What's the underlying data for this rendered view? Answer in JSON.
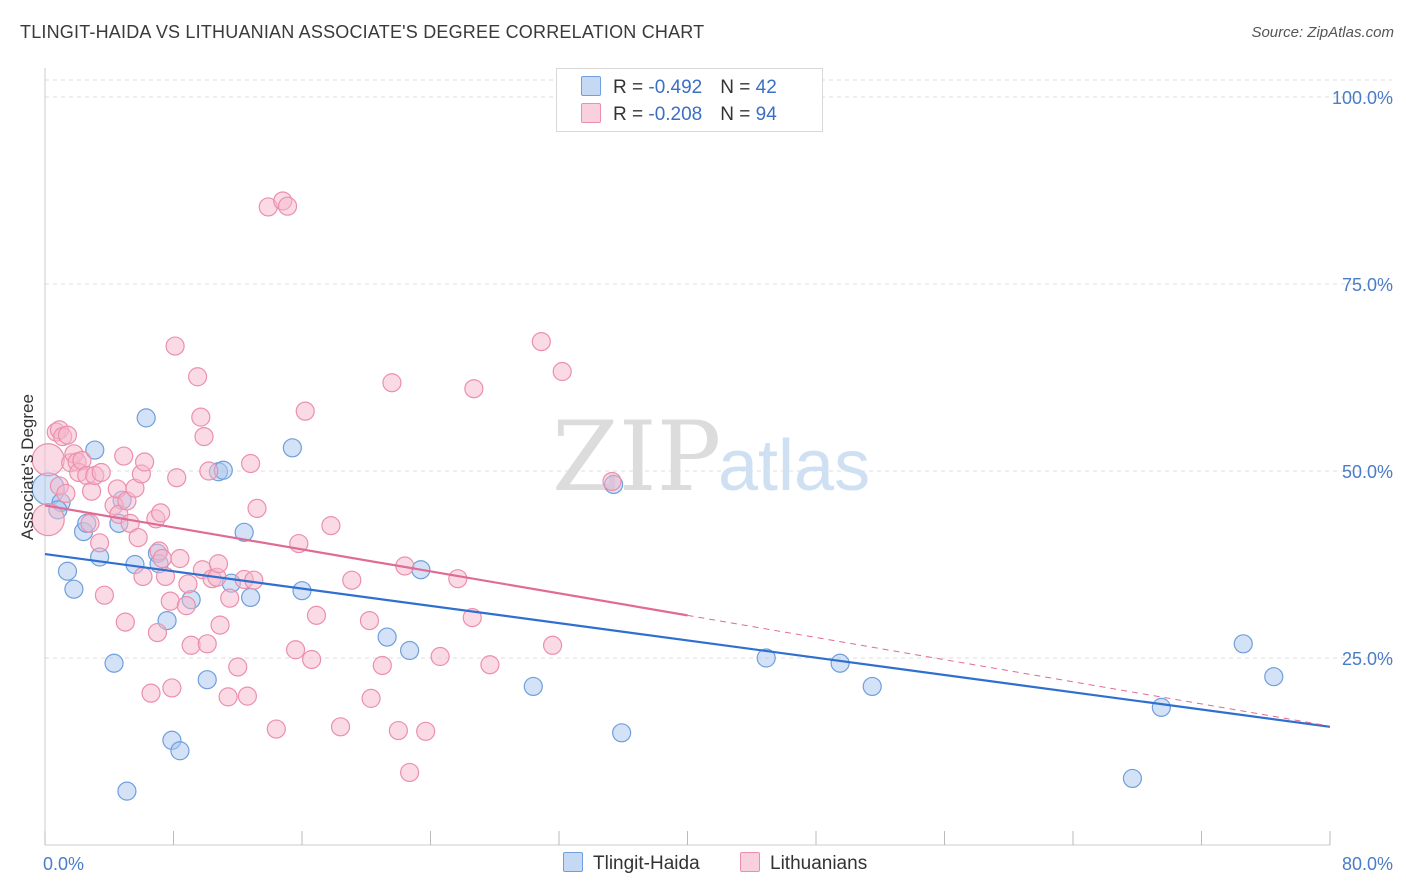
{
  "header": {
    "title": "TLINGIT-HAIDA VS LITHUANIAN ASSOCIATE'S DEGREE CORRELATION CHART",
    "source": "Source: ZipAtlas.com"
  },
  "legend": {
    "rows": [
      {
        "r_label": "R = ",
        "r_value": "-0.492",
        "n_label": "N = ",
        "n_value": "42"
      },
      {
        "r_label": "R = ",
        "r_value": "-0.208",
        "n_label": "N = ",
        "n_value": "94"
      }
    ]
  },
  "watermark": {
    "zip": "ZIP",
    "atlas": "atlas"
  },
  "colors": {
    "blue_fill": "#a8c6ef",
    "blue_stroke": "#6f9fdc",
    "blue_line": "#2f6fcf",
    "pink_fill": "#f6b7cb",
    "pink_stroke": "#ec8fac",
    "pink_line": "#e06b94",
    "tick_text": "#4a7cc7",
    "grid": "#dddddd"
  },
  "chart_data": {
    "type": "scatter",
    "title": "TLINGIT-HAIDA VS LITHUANIAN ASSOCIATE'S DEGREE CORRELATION CHART",
    "xlabel": "",
    "ylabel": "Associate's Degree",
    "xlim": [
      0,
      80
    ],
    "ylim": [
      0,
      100
    ],
    "x_tick_labels": [
      "0.0%",
      "80.0%"
    ],
    "y_ticks": [
      {
        "value": 25,
        "label": "25.0%"
      },
      {
        "value": 50,
        "label": "50.0%"
      },
      {
        "value": 75,
        "label": "75.0%"
      },
      {
        "value": 100,
        "label": "100.0%"
      }
    ],
    "grid": true,
    "series": [
      {
        "name": "Tlingit-Haida",
        "color": "blue",
        "r": -0.492,
        "n": 42,
        "trend": {
          "x": [
            0,
            80
          ],
          "y": [
            38.9,
            15.8
          ]
        },
        "points": [
          [
            0.2,
            47.6
          ],
          [
            1.0,
            45.8
          ],
          [
            0.8,
            44.8
          ],
          [
            1.4,
            36.6
          ],
          [
            1.8,
            34.2
          ],
          [
            2.4,
            41.9
          ],
          [
            2.6,
            43.0
          ],
          [
            3.1,
            52.8
          ],
          [
            3.4,
            38.5
          ],
          [
            4.3,
            24.3
          ],
          [
            4.6,
            43.0
          ],
          [
            4.8,
            46.1
          ],
          [
            5.1,
            7.2
          ],
          [
            5.6,
            37.5
          ],
          [
            6.3,
            57.1
          ],
          [
            7.0,
            39.0
          ],
          [
            7.1,
            37.6
          ],
          [
            7.6,
            30.0
          ],
          [
            7.9,
            14.0
          ],
          [
            8.4,
            12.6
          ],
          [
            9.1,
            32.8
          ],
          [
            10.1,
            22.1
          ],
          [
            10.8,
            49.9
          ],
          [
            11.1,
            50.1
          ],
          [
            11.6,
            35.0
          ],
          [
            12.4,
            41.8
          ],
          [
            12.8,
            33.1
          ],
          [
            15.4,
            53.1
          ],
          [
            16.0,
            34.0
          ],
          [
            21.3,
            27.8
          ],
          [
            23.4,
            36.8
          ],
          [
            22.7,
            26.0
          ],
          [
            30.4,
            21.2
          ],
          [
            35.9,
            15.0
          ],
          [
            35.4,
            48.2
          ],
          [
            44.9,
            25.0
          ],
          [
            49.5,
            24.3
          ],
          [
            51.5,
            21.2
          ],
          [
            67.7,
            8.9
          ],
          [
            69.5,
            18.4
          ],
          [
            74.6,
            26.9
          ],
          [
            76.5,
            22.5
          ]
        ]
      },
      {
        "name": "Lithuanians",
        "color": "pink",
        "r": -0.208,
        "n": 94,
        "trend": {
          "x": [
            0,
            40
          ],
          "y": [
            45.4,
            30.7
          ]
        },
        "trend_dashed": {
          "x": [
            40,
            80
          ],
          "y": [
            30.7,
            15.9
          ]
        },
        "points": [
          [
            0.2,
            51.5
          ],
          [
            0.2,
            43.5
          ],
          [
            0.7,
            55.2
          ],
          [
            0.9,
            55.5
          ],
          [
            1.1,
            54.6
          ],
          [
            1.4,
            54.8
          ],
          [
            1.6,
            51.1
          ],
          [
            1.8,
            52.3
          ],
          [
            2.0,
            51.2
          ],
          [
            2.1,
            49.8
          ],
          [
            2.3,
            51.4
          ],
          [
            2.6,
            49.4
          ],
          [
            2.8,
            43.0
          ],
          [
            2.9,
            47.3
          ],
          [
            3.1,
            49.4
          ],
          [
            3.4,
            40.4
          ],
          [
            3.5,
            49.8
          ],
          [
            3.7,
            33.4
          ],
          [
            4.3,
            45.4
          ],
          [
            4.6,
            44.2
          ],
          [
            4.5,
            47.6
          ],
          [
            4.9,
            52.0
          ],
          [
            5.1,
            46.0
          ],
          [
            5.0,
            29.8
          ],
          [
            5.3,
            43.0
          ],
          [
            5.6,
            47.7
          ],
          [
            5.8,
            41.1
          ],
          [
            6.0,
            49.6
          ],
          [
            6.1,
            35.9
          ],
          [
            6.2,
            51.2
          ],
          [
            6.6,
            20.3
          ],
          [
            6.9,
            43.6
          ],
          [
            7.0,
            28.4
          ],
          [
            7.2,
            44.4
          ],
          [
            7.1,
            39.3
          ],
          [
            7.3,
            38.3
          ],
          [
            7.5,
            35.9
          ],
          [
            7.9,
            21.0
          ],
          [
            7.8,
            32.6
          ],
          [
            8.2,
            49.1
          ],
          [
            8.1,
            66.7
          ],
          [
            8.4,
            38.3
          ],
          [
            8.8,
            32.0
          ],
          [
            8.9,
            34.9
          ],
          [
            9.1,
            26.7
          ],
          [
            9.5,
            62.6
          ],
          [
            9.7,
            57.2
          ],
          [
            9.9,
            54.6
          ],
          [
            9.8,
            36.8
          ],
          [
            10.2,
            50.0
          ],
          [
            10.1,
            26.9
          ],
          [
            10.4,
            35.6
          ],
          [
            10.7,
            35.8
          ],
          [
            10.8,
            37.6
          ],
          [
            10.9,
            29.4
          ],
          [
            11.4,
            19.8
          ],
          [
            11.5,
            33.0
          ],
          [
            12.0,
            23.8
          ],
          [
            12.4,
            35.5
          ],
          [
            12.6,
            19.9
          ],
          [
            12.8,
            51.0
          ],
          [
            13.0,
            35.4
          ],
          [
            13.2,
            45.0
          ],
          [
            13.9,
            85.3
          ],
          [
            14.8,
            86.1
          ],
          [
            15.1,
            85.4
          ],
          [
            14.4,
            15.5
          ],
          [
            15.6,
            26.1
          ],
          [
            15.8,
            40.3
          ],
          [
            16.2,
            58.0
          ],
          [
            16.6,
            24.8
          ],
          [
            16.9,
            30.7
          ],
          [
            17.8,
            42.7
          ],
          [
            18.4,
            15.8
          ],
          [
            19.1,
            35.4
          ],
          [
            20.2,
            30.0
          ],
          [
            20.3,
            19.6
          ],
          [
            21.0,
            24.0
          ],
          [
            21.6,
            61.8
          ],
          [
            22.0,
            15.3
          ],
          [
            22.4,
            37.3
          ],
          [
            22.7,
            9.7
          ],
          [
            23.7,
            15.2
          ],
          [
            24.6,
            25.2
          ],
          [
            25.7,
            35.6
          ],
          [
            26.6,
            30.4
          ],
          [
            26.7,
            61.0
          ],
          [
            27.7,
            24.1
          ],
          [
            30.9,
            67.3
          ],
          [
            31.6,
            26.7
          ],
          [
            32.2,
            63.3
          ],
          [
            35.3,
            48.6
          ],
          [
            0.9,
            48.0
          ],
          [
            1.3,
            47.0
          ]
        ]
      }
    ]
  },
  "bottom_legend": {
    "items": [
      {
        "label": "Tlingit-Haida"
      },
      {
        "label": "Lithuanians"
      }
    ]
  }
}
